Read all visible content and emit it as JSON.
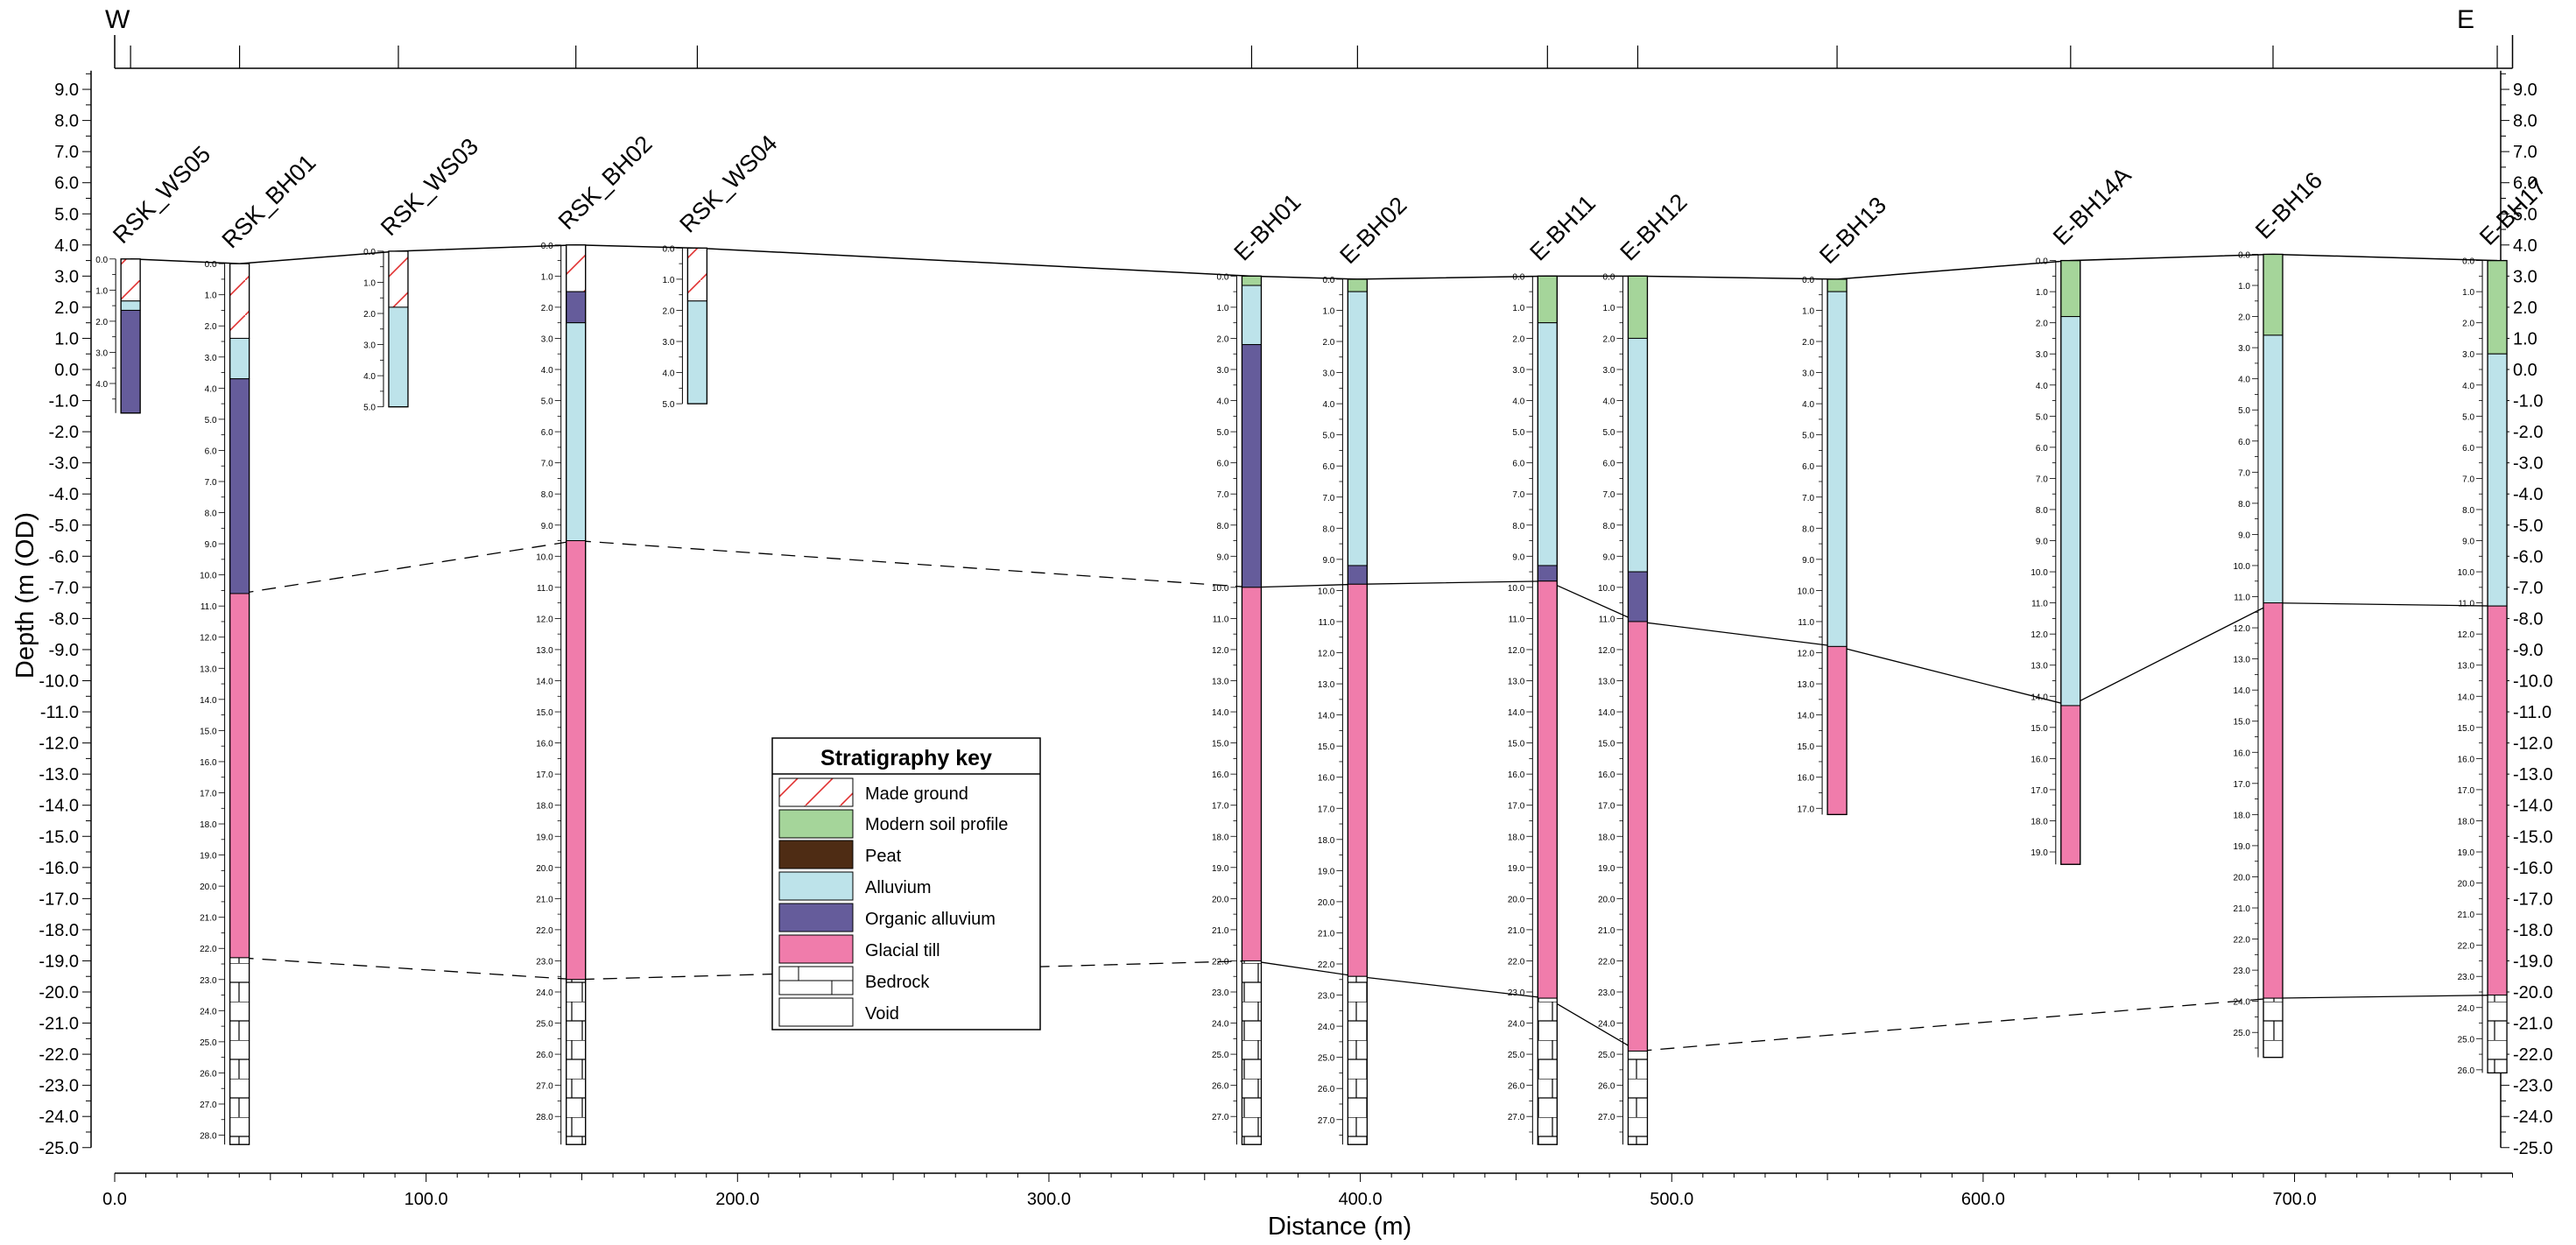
{
  "section": {
    "west_label": "W",
    "east_label": "E",
    "y_axis_title": "Depth (m (OD)",
    "x_axis_title": "Distance (m)"
  },
  "chart_data": {
    "type": "geological cross-section",
    "xlabel": "Distance (m)",
    "ylabel": "Depth (m (OD)",
    "xlim": [
      0,
      770
    ],
    "ylim": [
      -25,
      9.5
    ],
    "y_ticks": [
      "9.0",
      "8.0",
      "7.0",
      "6.0",
      "5.0",
      "4.0",
      "3.0",
      "2.0",
      "1.0",
      "0.0",
      "-1.0",
      "-2.0",
      "-3.0",
      "-4.0",
      "-5.0",
      "-6.0",
      "-7.0",
      "-8.0",
      "-9.0",
      "-10.0",
      "-11.0",
      "-12.0",
      "-13.0",
      "-14.0",
      "-15.0",
      "-16.0",
      "-17.0",
      "-18.0",
      "-19.0",
      "-20.0",
      "-21.0",
      "-22.0",
      "-23.0",
      "-24.0",
      "-25.0"
    ],
    "x_ticks": [
      "0.0",
      "100.0",
      "200.0",
      "300.0",
      "400.0",
      "500.0",
      "600.0",
      "700.0"
    ],
    "boreholes": [
      {
        "name": "RSK_WS05",
        "x": 2,
        "top": 3.55,
        "bottom": -1.4,
        "layers": [
          {
            "unit": "made_ground",
            "base": 2.2
          },
          {
            "unit": "alluvium",
            "base": 1.9
          },
          {
            "unit": "organic_alluvium",
            "base": -1.4
          }
        ]
      },
      {
        "name": "RSK_BH01",
        "x": 37,
        "top": 3.4,
        "bottom": -24.9,
        "layers": [
          {
            "unit": "made_ground",
            "base": 1.0
          },
          {
            "unit": "alluvium",
            "base": -0.3
          },
          {
            "unit": "organic_alluvium",
            "base": -7.2
          },
          {
            "unit": "glacial_till",
            "base": -18.9
          },
          {
            "unit": "bedrock",
            "base": -24.9
          }
        ]
      },
      {
        "name": "RSK_WS03",
        "x": 88,
        "top": 3.8,
        "bottom": -1.2,
        "layers": [
          {
            "unit": "made_ground",
            "base": 2.0
          },
          {
            "unit": "alluvium",
            "base": -1.2
          }
        ]
      },
      {
        "name": "RSK_BH02",
        "x": 145,
        "top": 4.0,
        "bottom": -24.9,
        "layers": [
          {
            "unit": "made_ground",
            "base": 2.5
          },
          {
            "unit": "organic_alluvium",
            "base": 1.5
          },
          {
            "unit": "alluvium",
            "base": -5.5
          },
          {
            "unit": "glacial_till",
            "base": -19.6
          },
          {
            "unit": "bedrock",
            "base": -24.9
          }
        ]
      },
      {
        "name": "RSK_WS04",
        "x": 184,
        "top": 3.9,
        "bottom": -1.1,
        "layers": [
          {
            "unit": "made_ground",
            "base": 2.2
          },
          {
            "unit": "alluvium",
            "base": -1.1
          }
        ]
      },
      {
        "name": "E-BH01",
        "x": 362,
        "top": 3.0,
        "bottom": -24.9,
        "layers": [
          {
            "unit": "modern_soil",
            "base": 2.7
          },
          {
            "unit": "alluvium",
            "base": 0.8
          },
          {
            "unit": "organic_alluvium",
            "base": -7.0
          },
          {
            "unit": "glacial_till",
            "base": -19.0
          },
          {
            "unit": "bedrock",
            "base": -24.9
          }
        ]
      },
      {
        "name": "E-BH02",
        "x": 396,
        "top": 2.9,
        "bottom": -24.9,
        "layers": [
          {
            "unit": "modern_soil",
            "base": 2.5
          },
          {
            "unit": "alluvium",
            "base": -6.3
          },
          {
            "unit": "organic_alluvium",
            "base": -6.9
          },
          {
            "unit": "glacial_till",
            "base": -19.5
          },
          {
            "unit": "bedrock",
            "base": -24.9
          }
        ]
      },
      {
        "name": "E-BH11",
        "x": 457,
        "top": 3.0,
        "bottom": -24.9,
        "layers": [
          {
            "unit": "modern_soil",
            "base": 1.5
          },
          {
            "unit": "alluvium",
            "base": -6.3
          },
          {
            "unit": "organic_alluvium",
            "base": -6.8
          },
          {
            "unit": "glacial_till",
            "base": -20.2
          },
          {
            "unit": "bedrock",
            "base": -24.9
          }
        ]
      },
      {
        "name": "E-BH12",
        "x": 486,
        "top": 3.0,
        "bottom": -24.9,
        "layers": [
          {
            "unit": "modern_soil",
            "base": 1.0
          },
          {
            "unit": "alluvium",
            "base": -6.5
          },
          {
            "unit": "organic_alluvium",
            "base": -8.1
          },
          {
            "unit": "glacial_till",
            "base": -21.9
          },
          {
            "unit": "bedrock",
            "base": -24.9
          }
        ]
      },
      {
        "name": "E-BH13",
        "x": 550,
        "top": 2.9,
        "bottom": -14.3,
        "layers": [
          {
            "unit": "modern_soil",
            "base": 2.5
          },
          {
            "unit": "alluvium",
            "base": -8.9
          },
          {
            "unit": "glacial_till",
            "base": -14.3
          }
        ]
      },
      {
        "name": "E-BH14A",
        "x": 625,
        "top": 3.5,
        "bottom": -15.9,
        "layers": [
          {
            "unit": "modern_soil",
            "base": 1.7
          },
          {
            "unit": "alluvium",
            "base": -10.8
          },
          {
            "unit": "glacial_till",
            "base": -15.9
          }
        ]
      },
      {
        "name": "E-BH16",
        "x": 690,
        "top": 3.7,
        "bottom": -22.1,
        "layers": [
          {
            "unit": "modern_soil",
            "base": 1.1
          },
          {
            "unit": "alluvium",
            "base": -7.5
          },
          {
            "unit": "glacial_till",
            "base": -20.2
          },
          {
            "unit": "bedrock",
            "base": -22.1
          }
        ]
      },
      {
        "name": "E-BH17",
        "x": 762,
        "top": 3.5,
        "bottom": -22.6,
        "layers": [
          {
            "unit": "modern_soil",
            "base": 0.5
          },
          {
            "unit": "alluvium",
            "base": -7.6
          },
          {
            "unit": "glacial_till",
            "base": -20.1
          },
          {
            "unit": "bedrock",
            "base": -22.6
          }
        ]
      }
    ],
    "ground_surface": [
      [
        2,
        3.55
      ],
      [
        37,
        3.4
      ],
      [
        88,
        3.8
      ],
      [
        145,
        4.0
      ],
      [
        184,
        3.9
      ],
      [
        362,
        3.0
      ],
      [
        396,
        2.9
      ],
      [
        457,
        3.0
      ],
      [
        486,
        3.0
      ],
      [
        550,
        2.9
      ],
      [
        625,
        3.5
      ],
      [
        690,
        3.7
      ],
      [
        762,
        3.5
      ]
    ],
    "correlation_lines": [
      {
        "name": "base of alluvium",
        "style": "solid",
        "points": [
          [
            362,
            -7.0
          ],
          [
            396,
            -6.9
          ],
          [
            457,
            -6.8
          ],
          [
            486,
            -8.1
          ],
          [
            550,
            -8.9
          ],
          [
            625,
            -10.8
          ],
          [
            690,
            -7.5
          ],
          [
            762,
            -7.6
          ]
        ]
      },
      {
        "name": "base of alluvium",
        "style": "dashed",
        "points": [
          [
            37,
            -7.2
          ],
          [
            145,
            -5.5
          ],
          [
            362,
            -7.0
          ]
        ]
      },
      {
        "name": "top of bedrock",
        "style": "solid",
        "points": [
          [
            362,
            -19.0
          ],
          [
            396,
            -19.5
          ],
          [
            457,
            -20.2
          ],
          [
            486,
            -21.9
          ]
        ]
      },
      {
        "name": "top of bedrock",
        "style": "dashed",
        "points": [
          [
            37,
            -18.9
          ],
          [
            145,
            -19.6
          ],
          [
            362,
            -19.0
          ]
        ]
      },
      {
        "name": "top of bedrock",
        "style": "dashed",
        "points": [
          [
            486,
            -21.9
          ],
          [
            690,
            -20.2
          ]
        ]
      },
      {
        "name": "top of bedrock",
        "style": "solid",
        "points": [
          [
            690,
            -20.2
          ],
          [
            762,
            -20.1
          ]
        ]
      }
    ],
    "legend": {
      "title": "Stratigraphy key",
      "items": [
        {
          "unit": "made_ground",
          "label": "Made ground"
        },
        {
          "unit": "modern_soil",
          "label": "Modern soil profile",
          "color": "#a5d59a"
        },
        {
          "unit": "peat",
          "label": "Peat",
          "color": "#4e2c14"
        },
        {
          "unit": "alluvium",
          "label": "Alluvium",
          "color": "#bde3ea"
        },
        {
          "unit": "organic_alluvium",
          "label": "Organic alluvium",
          "color": "#655c9b"
        },
        {
          "unit": "glacial_till",
          "label": "Glacial till",
          "color": "#f07cab"
        },
        {
          "unit": "bedrock",
          "label": "Bedrock"
        },
        {
          "unit": "void",
          "label": "Void",
          "color": "#ffffff"
        }
      ]
    }
  }
}
